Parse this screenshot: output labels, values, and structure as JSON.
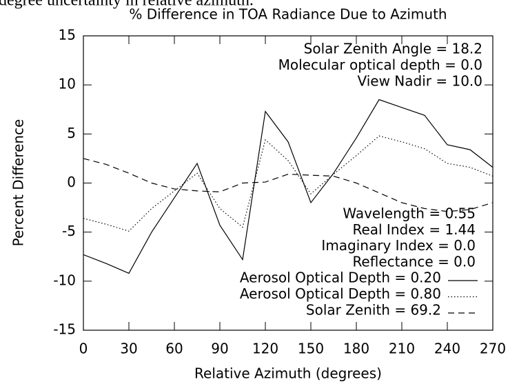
{
  "caption": "degree uncertainty in relative azimuth.",
  "chart_data": {
    "type": "line",
    "title": "% Difference in TOA Radiance Due to Azimuth",
    "x_label": "Relative Azimuth (degrees)",
    "y_label": "Percent Difference",
    "annotations_top": [
      "Solar Zenith Angle = 18.2",
      "Molecular optical depth = 0.0",
      "View Nadir = 10.0"
    ],
    "annotations_bottom": [
      "Wavelength = 0.55",
      "Real Index = 1.44",
      "Imaginary Index = 0.0",
      "Reflectance = 0.0"
    ],
    "x": [
      0,
      15,
      30,
      45,
      60,
      75,
      90,
      105,
      120,
      135,
      150,
      165,
      180,
      195,
      210,
      225,
      240,
      255,
      270
    ],
    "series": [
      {
        "name": "Aerosol Optical Depth = 0.20",
        "color": "#000000",
        "linestyle": "solid",
        "values": [
          -7.3,
          -8.2,
          -9.2,
          -5.0,
          -1.5,
          2.0,
          -4.3,
          -7.8,
          7.3,
          4.2,
          -2.0,
          1.0,
          4.6,
          8.5,
          7.7,
          6.9,
          3.9,
          3.4,
          1.6
        ]
      },
      {
        "name": "Aerosol Optical Depth = 0.80",
        "color": "#000000",
        "linestyle": "dotted",
        "values": [
          -3.6,
          -4.2,
          -4.9,
          -2.6,
          -0.8,
          1.0,
          -2.6,
          -4.5,
          4.4,
          2.3,
          -1.1,
          0.9,
          2.8,
          4.8,
          4.2,
          3.5,
          2.0,
          1.6,
          0.7
        ]
      },
      {
        "name": "Solar Zenith = 69.2",
        "color": "#000000",
        "linestyle": "dashed",
        "values": [
          2.5,
          1.9,
          1.0,
          0.0,
          -0.6,
          -0.8,
          -0.9,
          0.0,
          0.1,
          0.9,
          0.8,
          0.7,
          0.0,
          -1.0,
          -2.0,
          -2.6,
          -2.9,
          -2.7,
          -2.0
        ]
      }
    ],
    "xlim": [
      0,
      270
    ],
    "xticks": [
      0,
      30,
      60,
      90,
      120,
      150,
      180,
      210,
      240,
      270
    ],
    "ylim": [
      -15,
      15
    ],
    "yticks": [
      -15,
      -10,
      -5,
      0,
      5,
      10,
      15
    ],
    "grid": false
  }
}
